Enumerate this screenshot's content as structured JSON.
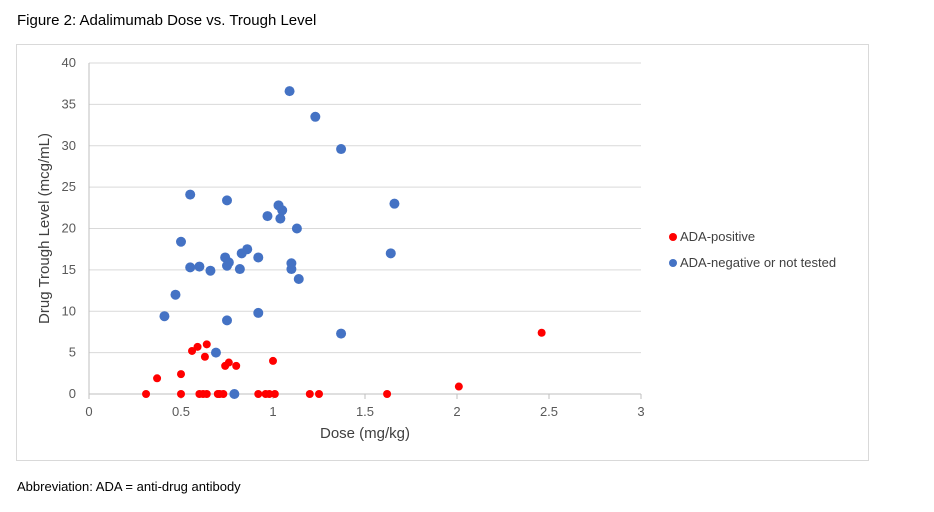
{
  "figure_title": "Figure 2: Adalimumab Dose vs. Trough Level",
  "footnote": "Abbreviation: ADA = anti-drug antibody",
  "colors": {
    "ada_positive": "#ff0000",
    "ada_negative": "#4472c4",
    "grid": "#d9d9d9",
    "axis": "#bfbfbf"
  },
  "chart_data": {
    "type": "scatter",
    "title": "",
    "xlabel": "Dose (mg/kg)",
    "ylabel": "Drug Trough Level (mcg/mL)",
    "xlim": [
      0,
      3
    ],
    "ylim": [
      0,
      40
    ],
    "x_ticks": [
      0,
      0.5,
      1,
      1.5,
      2,
      2.5,
      3
    ],
    "x_tick_labels": [
      "0",
      "0.5",
      "1",
      "1.5",
      "2",
      "2.5",
      "3"
    ],
    "y_ticks": [
      0,
      5,
      10,
      15,
      20,
      25,
      30,
      35,
      40
    ],
    "y_tick_labels": [
      "0",
      "5",
      "10",
      "15",
      "20",
      "25",
      "30",
      "35",
      "40"
    ],
    "grid": "horizontal",
    "legend_position": "right",
    "series": [
      {
        "name": "ADA-positive",
        "color": "#ff0000",
        "points": [
          [
            0.31,
            0
          ],
          [
            0.37,
            1.9
          ],
          [
            0.5,
            2.4
          ],
          [
            0.5,
            0
          ],
          [
            0.56,
            5.2
          ],
          [
            0.59,
            5.7
          ],
          [
            0.6,
            0
          ],
          [
            0.62,
            0
          ],
          [
            0.63,
            4.5
          ],
          [
            0.64,
            6.0
          ],
          [
            0.64,
            0
          ],
          [
            0.7,
            0
          ],
          [
            0.71,
            0
          ],
          [
            0.73,
            0
          ],
          [
            0.74,
            3.4
          ],
          [
            0.76,
            3.8
          ],
          [
            0.8,
            3.4
          ],
          [
            0.92,
            0
          ],
          [
            0.96,
            0
          ],
          [
            0.98,
            0
          ],
          [
            1.0,
            4.0
          ],
          [
            1.01,
            0
          ],
          [
            1.2,
            0
          ],
          [
            1.25,
            0
          ],
          [
            1.62,
            0
          ],
          [
            2.01,
            0.9
          ],
          [
            2.46,
            7.4
          ]
        ]
      },
      {
        "name": "ADA-negative or not tested",
        "color": "#4472c4",
        "points": [
          [
            0.41,
            9.4
          ],
          [
            0.47,
            12.0
          ],
          [
            0.5,
            18.4
          ],
          [
            0.55,
            24.1
          ],
          [
            0.55,
            15.3
          ],
          [
            0.6,
            15.4
          ],
          [
            0.66,
            14.9
          ],
          [
            0.69,
            5.0
          ],
          [
            0.74,
            16.5
          ],
          [
            0.75,
            23.4
          ],
          [
            0.75,
            15.5
          ],
          [
            0.75,
            8.9
          ],
          [
            0.76,
            15.9
          ],
          [
            0.79,
            0
          ],
          [
            0.82,
            15.1
          ],
          [
            0.83,
            17.0
          ],
          [
            0.86,
            17.5
          ],
          [
            0.92,
            16.5
          ],
          [
            0.92,
            9.8
          ],
          [
            0.97,
            21.5
          ],
          [
            1.03,
            22.8
          ],
          [
            1.04,
            21.2
          ],
          [
            1.05,
            22.2
          ],
          [
            1.09,
            36.6
          ],
          [
            1.1,
            15.8
          ],
          [
            1.1,
            15.1
          ],
          [
            1.13,
            20.0
          ],
          [
            1.14,
            13.9
          ],
          [
            1.23,
            33.5
          ],
          [
            1.37,
            29.6
          ],
          [
            1.37,
            7.3
          ],
          [
            1.64,
            17.0
          ],
          [
            1.66,
            23.0
          ]
        ]
      }
    ]
  }
}
